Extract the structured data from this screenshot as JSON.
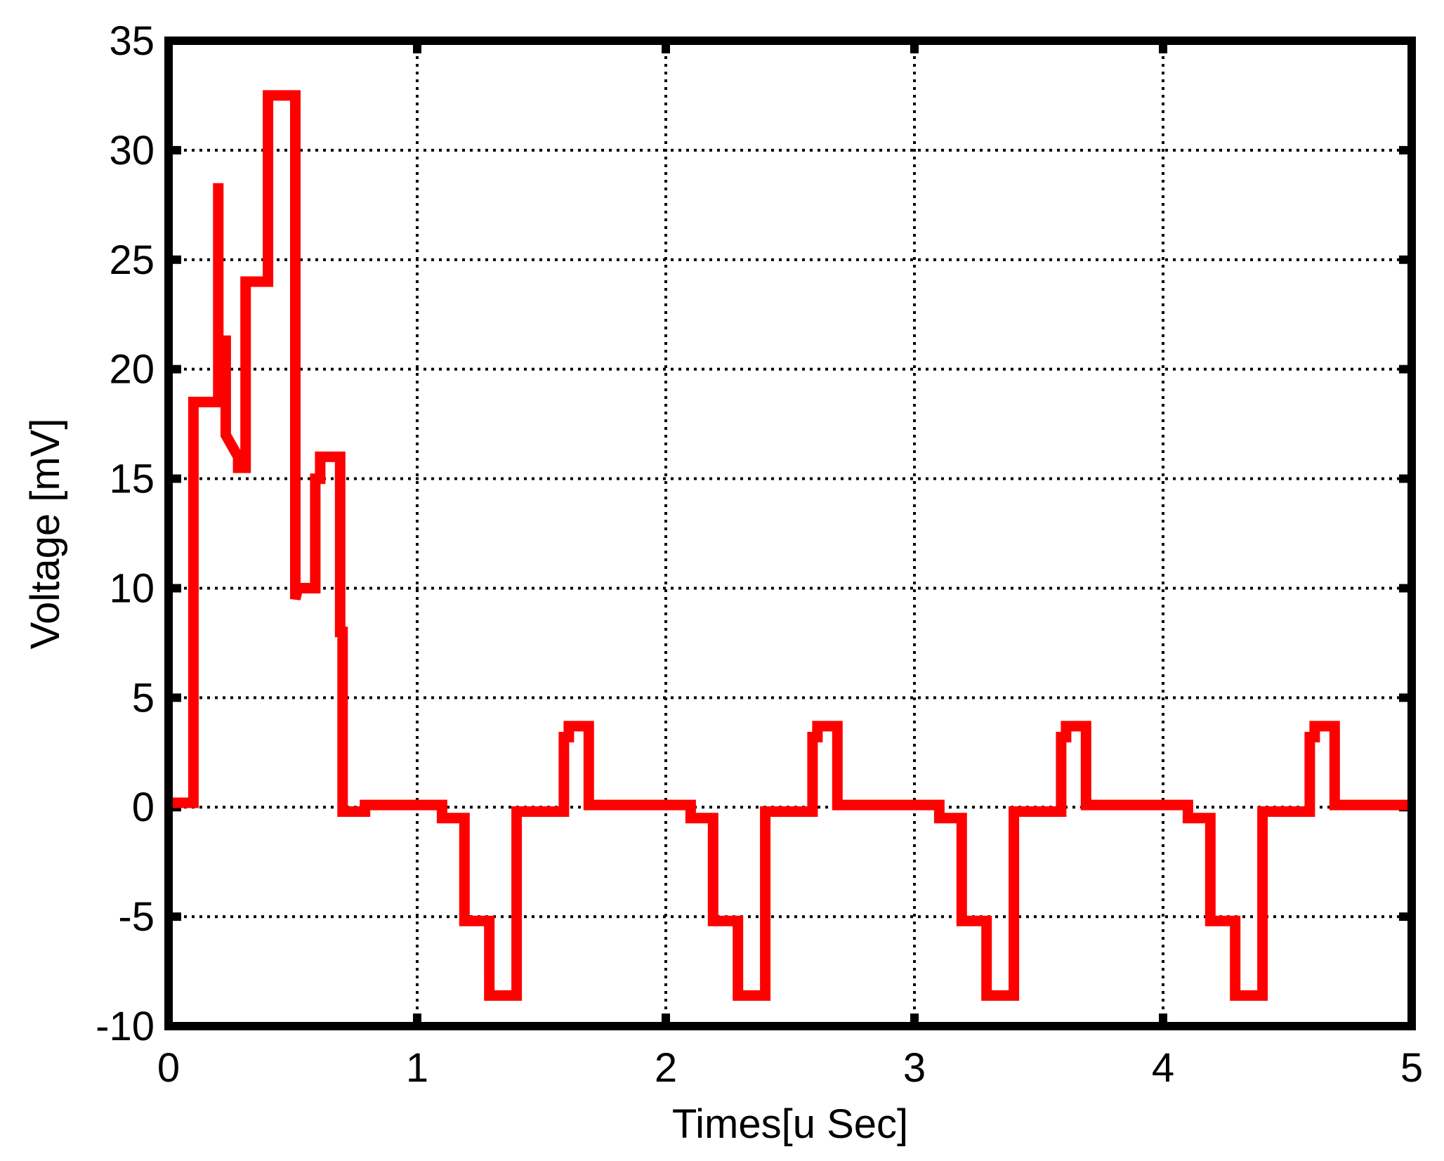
{
  "chart_data": {
    "type": "line",
    "title": "",
    "xlabel": "Times[u Sec]",
    "ylabel": "Voltage [mV]",
    "xlim": [
      0,
      5
    ],
    "ylim": [
      -10,
      35
    ],
    "xticks": [
      0,
      1,
      2,
      3,
      4,
      5
    ],
    "yticks": [
      -10,
      -5,
      0,
      5,
      10,
      15,
      20,
      25,
      30,
      35
    ],
    "grid": true,
    "legend": "none",
    "colors": {
      "line": "#ff0000",
      "axes": "#000000",
      "grid": "#000000",
      "background": "#ffffff"
    },
    "series": [
      {
        "x": [
          0.02,
          0.1,
          0.1,
          0.2,
          0.2,
          0.2,
          0.21,
          0.23,
          0.23,
          0.28,
          0.28,
          0.29,
          0.31,
          0.31,
          0.4,
          0.4,
          0.41,
          0.41,
          0.51,
          0.51,
          0.52,
          0.52,
          0.59,
          0.59,
          0.61,
          0.61,
          0.69,
          0.69,
          0.7,
          0.7,
          0.79,
          0.79,
          1.1,
          1.1,
          1.19,
          1.19,
          1.29,
          1.29,
          1.4,
          1.4,
          1.59,
          1.59,
          1.61,
          1.61,
          1.69,
          1.69,
          1.72,
          1.72,
          2.1,
          2.1,
          2.19,
          2.19,
          2.29,
          2.29,
          2.4,
          2.4,
          2.59,
          2.59,
          2.61,
          2.61,
          2.69,
          2.69,
          2.72,
          2.72,
          3.1,
          3.1,
          3.19,
          3.19,
          3.29,
          3.29,
          3.4,
          3.4,
          3.59,
          3.59,
          3.61,
          3.61,
          3.69,
          3.69,
          3.72,
          3.72,
          4.1,
          4.1,
          4.19,
          4.19,
          4.29,
          4.29,
          4.4,
          4.4,
          4.59,
          4.59,
          4.61,
          4.61,
          4.69,
          4.69,
          4.72,
          4.72,
          4.98
        ],
        "y": [
          0.2,
          0.2,
          18.5,
          18.5,
          28.5,
          21.5,
          21.3,
          21.3,
          17.0,
          16.0,
          15.5,
          15.5,
          15.5,
          24.0,
          24.0,
          32.5,
          32.5,
          32.5,
          32.5,
          9.5,
          10.0,
          10.0,
          10.0,
          15.0,
          15.0,
          16.0,
          16.0,
          8.0,
          8.0,
          -0.2,
          -0.2,
          0.1,
          0.1,
          -0.5,
          -0.5,
          -5.2,
          -5.2,
          -8.6,
          -8.6,
          -0.2,
          -0.2,
          3.2,
          3.2,
          3.7,
          3.7,
          0.1,
          0.1,
          0.1,
          0.1,
          -0.5,
          -0.5,
          -5.2,
          -5.2,
          -8.6,
          -8.6,
          -0.2,
          -0.2,
          3.2,
          3.2,
          3.7,
          3.7,
          0.1,
          0.1,
          0.1,
          0.1,
          -0.5,
          -0.5,
          -5.2,
          -5.2,
          -8.6,
          -8.6,
          -0.2,
          -0.2,
          3.2,
          3.2,
          3.7,
          3.7,
          0.1,
          0.1,
          0.1,
          0.1,
          -0.5,
          -0.5,
          -5.2,
          -5.2,
          -8.6,
          -8.6,
          -0.2,
          -0.2,
          3.2,
          3.2,
          3.7,
          3.7,
          0.1,
          0.1,
          0.1,
          0.1
        ]
      }
    ]
  }
}
